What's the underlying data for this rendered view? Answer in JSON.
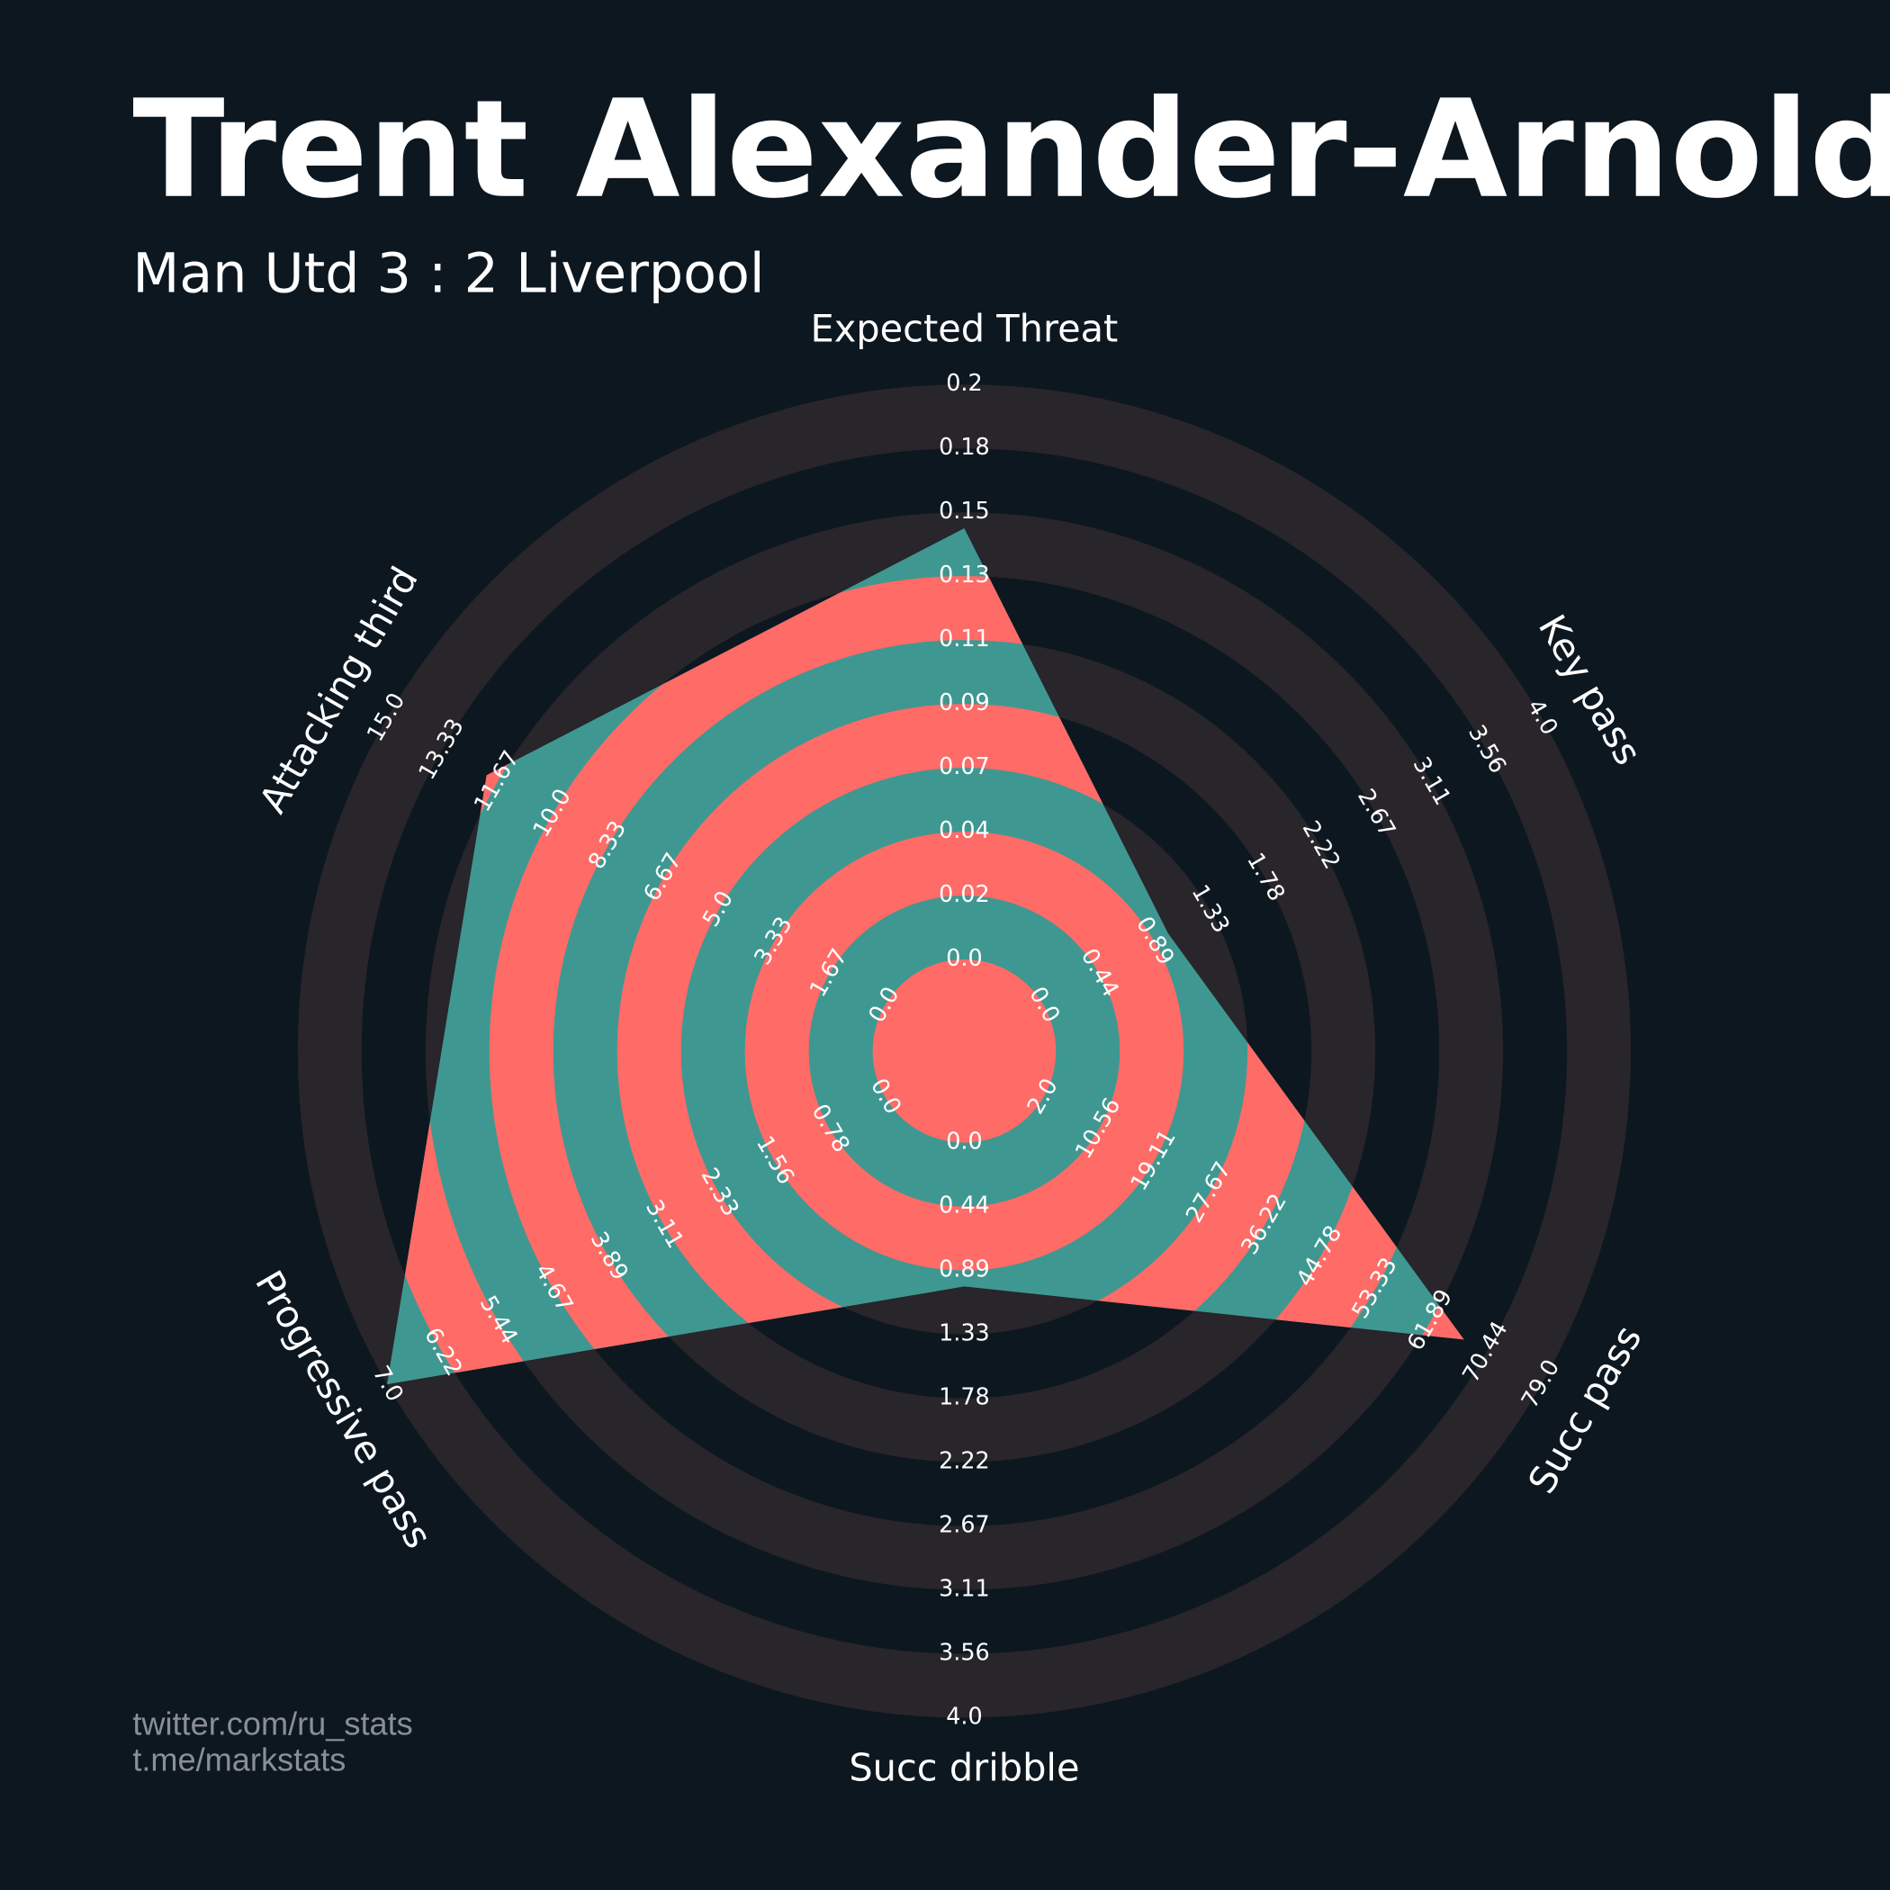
{
  "chart_data": {
    "type": "radar",
    "title": "Trent Alexander-Arnold",
    "subtitle": "Man Utd 3 : 2 Liverpool",
    "categories": [
      "Expected Threat",
      "Key pass",
      "Succ pass",
      "Succ dribble",
      "Progressive pass",
      "Attacking third"
    ],
    "values": [
      0.15,
      1,
      67,
      1,
      7,
      12
    ],
    "ticks": [
      [
        {
          "value": 0,
          "label": "0.0"
        },
        0.02,
        0.04,
        0.07,
        0.09,
        0.11,
        0.13,
        0.15,
        0.18,
        0.2
      ],
      [
        {
          "value": 0,
          "label": "0.0"
        },
        0.44,
        0.89,
        1.33,
        1.78,
        2.22,
        2.67,
        3.11,
        3.56,
        {
          "value": 4,
          "label": "4.0"
        }
      ],
      [
        {
          "value": 2,
          "label": "2.0"
        },
        10.56,
        19.11,
        27.67,
        36.22,
        44.78,
        53.33,
        61.89,
        70.44,
        {
          "value": 79,
          "label": "79.0"
        }
      ],
      [
        {
          "value": 0,
          "label": "0.0"
        },
        0.44,
        0.89,
        1.33,
        1.78,
        2.22,
        2.67,
        3.11,
        3.56,
        {
          "value": 4,
          "label": "4.0"
        }
      ],
      [
        {
          "value": 0,
          "label": "0.0"
        },
        0.78,
        1.56,
        2.33,
        3.11,
        3.89,
        4.67,
        5.44,
        6.22,
        {
          "value": 7,
          "label": "7.0"
        }
      ],
      [
        {
          "value": 0,
          "label": "0.0"
        },
        1.67,
        3.33,
        {
          "value": 5,
          "label": "5.0"
        },
        6.67,
        8.33,
        {
          "value": 10,
          "label": "10.0"
        },
        11.67,
        13.33,
        {
          "value": 15,
          "label": "15.0"
        }
      ]
    ],
    "polygon_color": "#3e9891",
    "ring_color": "#ff6b67",
    "band_color": "#28252b",
    "credits": [
      "twitter.com/ru_stats",
      "t.me/markstats"
    ]
  }
}
